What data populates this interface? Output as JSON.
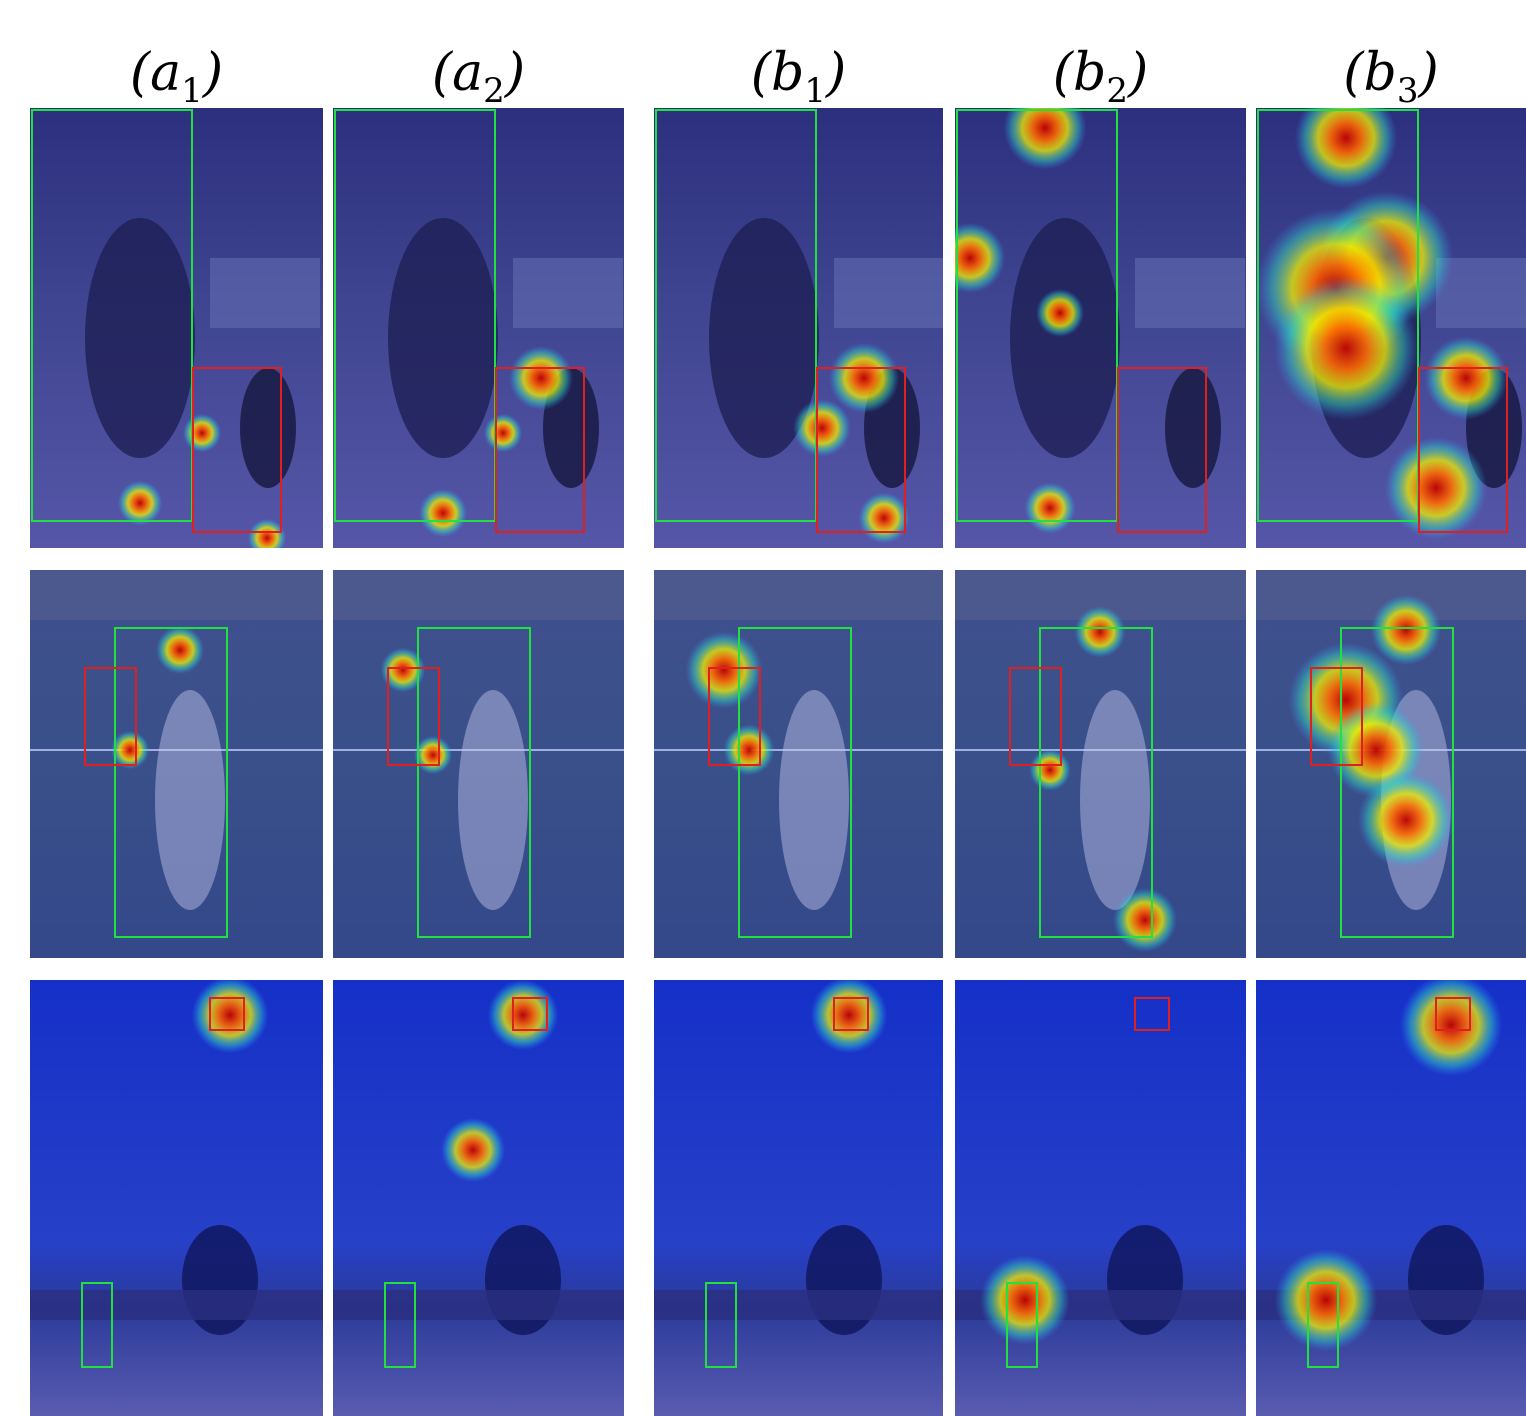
{
  "figure": {
    "column_labels": [
      {
        "prefix": "(a",
        "sub": "1",
        "suffix": ")"
      },
      {
        "prefix": "(a",
        "sub": "2",
        "suffix": ")"
      },
      {
        "prefix": "(b",
        "sub": "1",
        "suffix": ")"
      },
      {
        "prefix": "(b",
        "sub": "2",
        "suffix": ")"
      },
      {
        "prefix": "(b",
        "sub": "3",
        "suffix": ")"
      }
    ]
  }
}
